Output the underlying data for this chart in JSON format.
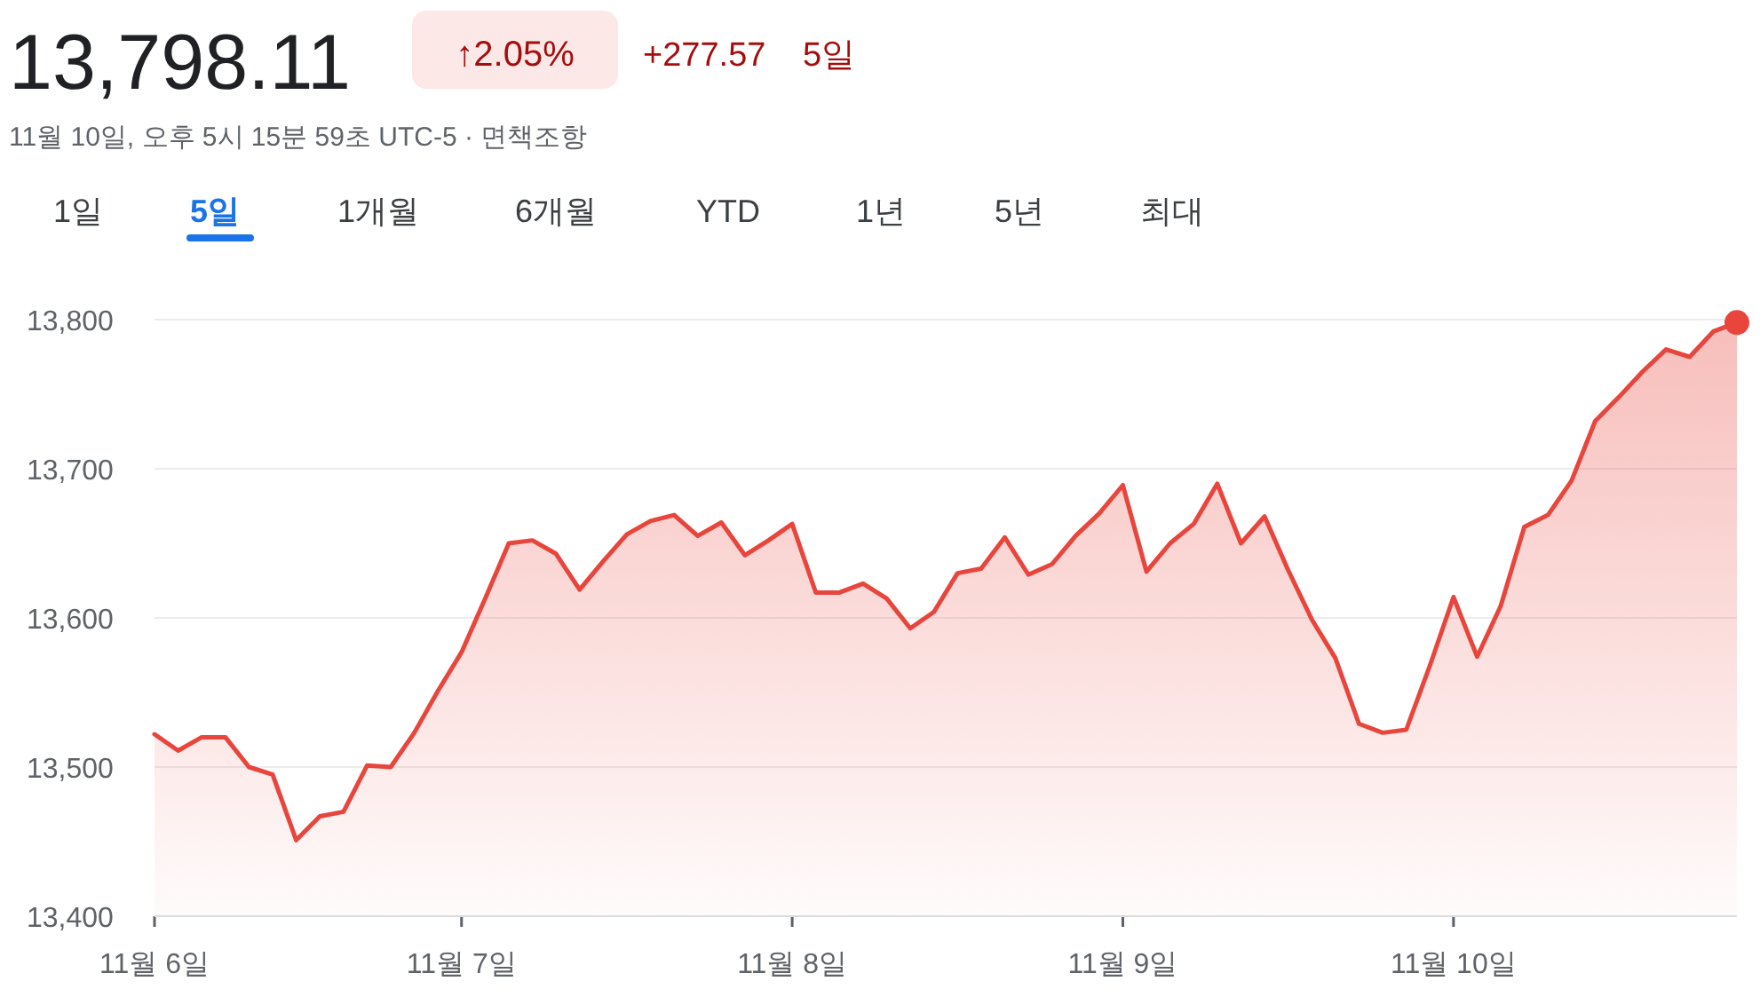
{
  "chart_data": {
    "type": "area",
    "title": "13,798.11",
    "subtitle": "11월 10일, 오후 5시 15분 59초 UTC-5 · 면책조항",
    "annotations": [
      "↑2.05%",
      "+277.57",
      "5일",
      "1일",
      "5일",
      "1개월",
      "6개월",
      "YTD",
      "1년",
      "5년",
      "최대"
    ],
    "categories": [
      "11월 6일",
      null,
      null,
      null,
      null,
      null,
      null,
      null,
      null,
      null,
      null,
      null,
      null,
      "11월 7일",
      null,
      null,
      null,
      null,
      null,
      null,
      null,
      null,
      null,
      null,
      null,
      null,
      null,
      "11월 8일",
      null,
      null,
      null,
      null,
      null,
      null,
      null,
      null,
      null,
      null,
      null,
      null,
      null,
      "11월 9일",
      null,
      null,
      null,
      null,
      null,
      null,
      null,
      null,
      null,
      null,
      null,
      null,
      null,
      "11월 10일",
      null,
      null,
      null,
      null,
      null,
      null,
      null,
      null,
      null,
      null,
      null,
      null
    ],
    "ylim": [
      13400,
      13800
    ],
    "yticks": [
      {
        "value": 13400,
        "label": "13,400"
      },
      {
        "value": 13500,
        "label": "13,500"
      },
      {
        "value": 13600,
        "label": "13,600"
      },
      {
        "value": 13700,
        "label": "13,700"
      },
      {
        "value": 13800,
        "label": "13,800"
      }
    ],
    "grid": "y",
    "series": [
      {
        "color": "#e8453c",
        "values": [
          13522,
          13511,
          13520,
          13520,
          13500,
          13495,
          13451,
          13467,
          13470,
          13501,
          13500,
          13523,
          13551,
          13577,
          13613,
          13650,
          13652,
          13643,
          13619,
          13638,
          13656,
          13665,
          13669,
          13655,
          13664,
          13642,
          13652,
          13663,
          13617,
          13617,
          13623,
          13613,
          13593,
          13604,
          13630,
          13633,
          13654,
          13629,
          13636,
          13655,
          13670,
          13689,
          13631,
          13650,
          13663,
          13690,
          13650,
          13668,
          13632,
          13599,
          13573,
          13529,
          13523,
          13525,
          13568,
          13614,
          13574,
          13608,
          13661,
          13669,
          13692,
          13732,
          13748,
          13765,
          13780,
          13775,
          13792,
          13798
        ]
      },
      {
        "type": "scatter",
        "color": "#e8453c",
        "values": [
          null,
          null,
          null,
          null,
          null,
          null,
          null,
          null,
          null,
          null,
          null,
          null,
          null,
          null,
          null,
          null,
          null,
          null,
          null,
          null,
          null,
          null,
          null,
          null,
          null,
          null,
          null,
          null,
          null,
          null,
          null,
          null,
          null,
          null,
          null,
          null,
          null,
          null,
          null,
          null,
          null,
          null,
          null,
          null,
          null,
          null,
          null,
          null,
          null,
          null,
          null,
          null,
          null,
          null,
          null,
          null,
          null,
          null,
          null,
          null,
          null,
          null,
          null,
          null,
          null,
          null,
          null,
          13798
        ]
      }
    ]
  }
}
